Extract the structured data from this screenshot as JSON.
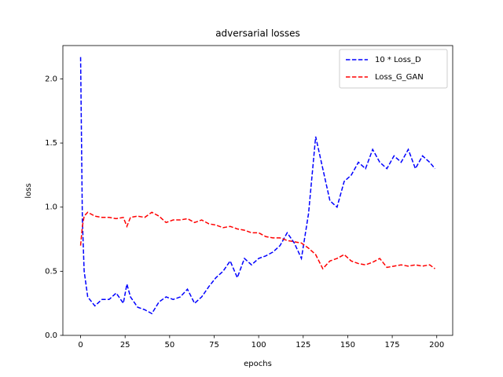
{
  "chart_data": {
    "type": "line",
    "title": "adversarial losses",
    "x_label": "epochs",
    "y_label": "loss",
    "x": [
      0,
      1,
      2,
      4,
      8,
      12,
      16,
      20,
      24,
      26,
      28,
      32,
      36,
      40,
      44,
      48,
      52,
      56,
      60,
      64,
      68,
      72,
      76,
      80,
      84,
      88,
      92,
      96,
      100,
      104,
      108,
      112,
      116,
      120,
      124,
      128,
      132,
      136,
      140,
      144,
      148,
      152,
      156,
      160,
      164,
      168,
      172,
      176,
      180,
      184,
      188,
      192,
      196,
      199
    ],
    "series": [
      {
        "name": "10 * Loss_D",
        "color": "#0000ff",
        "values": [
          2.17,
          0.9,
          0.5,
          0.3,
          0.23,
          0.28,
          0.28,
          0.33,
          0.25,
          0.4,
          0.3,
          0.22,
          0.2,
          0.17,
          0.26,
          0.3,
          0.28,
          0.3,
          0.36,
          0.25,
          0.3,
          0.38,
          0.45,
          0.5,
          0.58,
          0.45,
          0.6,
          0.55,
          0.6,
          0.62,
          0.65,
          0.7,
          0.8,
          0.72,
          0.6,
          0.95,
          1.55,
          1.3,
          1.05,
          1.0,
          1.2,
          1.25,
          1.35,
          1.3,
          1.45,
          1.35,
          1.3,
          1.4,
          1.35,
          1.45,
          1.3,
          1.4,
          1.35,
          1.3
        ]
      },
      {
        "name": "Loss_G_GAN",
        "color": "#ff0000",
        "values": [
          0.7,
          0.85,
          0.93,
          0.96,
          0.93,
          0.92,
          0.92,
          0.91,
          0.92,
          0.85,
          0.92,
          0.93,
          0.92,
          0.96,
          0.93,
          0.88,
          0.9,
          0.9,
          0.91,
          0.88,
          0.9,
          0.87,
          0.86,
          0.84,
          0.85,
          0.83,
          0.82,
          0.8,
          0.8,
          0.77,
          0.76,
          0.76,
          0.74,
          0.73,
          0.72,
          0.68,
          0.63,
          0.52,
          0.58,
          0.6,
          0.63,
          0.58,
          0.56,
          0.55,
          0.57,
          0.6,
          0.53,
          0.54,
          0.55,
          0.54,
          0.55,
          0.54,
          0.55,
          0.52
        ]
      }
    ],
    "xlim": [
      -9.95,
      208.95
    ],
    "ylim": [
      0,
      2.26
    ],
    "xticks": [
      0,
      25,
      50,
      75,
      100,
      125,
      150,
      175,
      200
    ],
    "yticks": [
      {
        "value": 0,
        "label": "0.0"
      },
      0.5,
      {
        "value": 1,
        "label": "1.0"
      },
      1.5,
      {
        "value": 2,
        "label": "2.0"
      }
    ],
    "legend": "upper right"
  }
}
